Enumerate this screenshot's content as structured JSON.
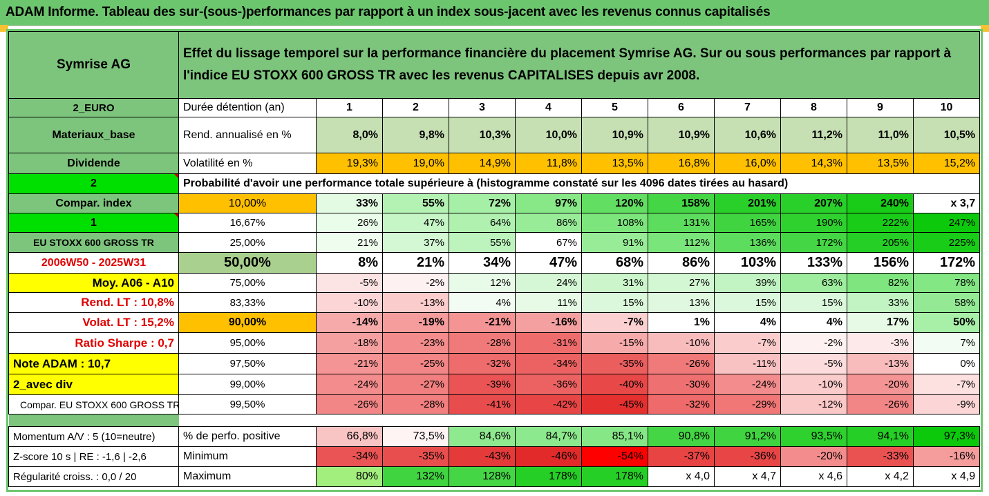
{
  "title": "ADAM Informe. Tableau des sur-(sous-)performances par rapport à un index sous-jacent avec les revenus connus capitalisés",
  "header": {
    "company": "Symrise AG",
    "description": "Effet du lissage temporel sur la performance financière du placement Symrise AG. Sur ou sous performances par rapport à l'indice EU STOXX 600 GROSS TR avec les revenus CAPITALISES depuis avr 2008."
  },
  "left": {
    "currency": "2_EURO",
    "sector": "Materiaux_base",
    "dividende": "Dividende",
    "two": "2",
    "compar_index": "Compar. index",
    "one": "1",
    "index_name": "EU STOXX 600 GROSS TR",
    "period": "2006W50 - 2025W31",
    "moy": "Moy. A06 - A10",
    "rend_lt": "Rend. LT :   10,8%",
    "volat_lt": "Volat. LT :   15,2%",
    "sharpe": "Ratio Sharpe :    0,7",
    "note": "Note ADAM : 10,7",
    "avec_div": "2_avec div",
    "compar_full": "Compar. EU STOXX 600 GROSS TR",
    "momentum": "Momentum A/V : 5 (10=neutre)",
    "zscore": "Z-score 10 s  |  RE : -1,6  |  -2,6",
    "regularite": "Régularité croiss. : 0,0 / 20"
  },
  "rowlabels": {
    "duree": "Durée détention (an)",
    "rend": "Rend. annualisé en %",
    "vol": "Volatilité en %",
    "proba": "Probabilité d'avoir une performance totale supérieure à (histogramme constaté sur les 4096 dates tirées au hasard)",
    "pos": "% de perfo. positive",
    "min": "Minimum",
    "max": "Maximum"
  },
  "years": [
    "1",
    "2",
    "3",
    "4",
    "5",
    "6",
    "7",
    "8",
    "9",
    "10"
  ],
  "rend": [
    "8,0%",
    "9,8%",
    "10,3%",
    "10,0%",
    "10,9%",
    "10,9%",
    "10,6%",
    "11,2%",
    "11,0%",
    "10,5%"
  ],
  "vol": [
    "19,3%",
    "19,0%",
    "14,9%",
    "11,8%",
    "13,5%",
    "16,8%",
    "16,0%",
    "14,3%",
    "13,5%",
    "15,2%"
  ],
  "prob_rows": [
    {
      "pct": "10,00%",
      "vals": [
        "33%",
        "55%",
        "72%",
        "97%",
        "120%",
        "158%",
        "201%",
        "207%",
        "240%",
        "x 3,7"
      ]
    },
    {
      "pct": "16,67%",
      "vals": [
        "26%",
        "47%",
        "64%",
        "86%",
        "108%",
        "131%",
        "165%",
        "190%",
        "222%",
        "247%"
      ]
    },
    {
      "pct": "25,00%",
      "vals": [
        "21%",
        "37%",
        "55%",
        "67%",
        "91%",
        "112%",
        "136%",
        "172%",
        "205%",
        "225%"
      ]
    },
    {
      "pct": "50,00%",
      "vals": [
        "8%",
        "21%",
        "34%",
        "47%",
        "68%",
        "86%",
        "103%",
        "133%",
        "156%",
        "172%"
      ]
    },
    {
      "pct": "75,00%",
      "vals": [
        "-5%",
        "-2%",
        "12%",
        "24%",
        "31%",
        "27%",
        "39%",
        "63%",
        "82%",
        "78%"
      ]
    },
    {
      "pct": "83,33%",
      "vals": [
        "-10%",
        "-13%",
        "4%",
        "11%",
        "15%",
        "13%",
        "15%",
        "15%",
        "33%",
        "58%"
      ]
    },
    {
      "pct": "90,00%",
      "vals": [
        "-14%",
        "-19%",
        "-21%",
        "-16%",
        "-7%",
        "1%",
        "4%",
        "4%",
        "17%",
        "50%"
      ]
    },
    {
      "pct": "95,00%",
      "vals": [
        "-18%",
        "-23%",
        "-28%",
        "-31%",
        "-15%",
        "-10%",
        "-7%",
        "-2%",
        "-3%",
        "7%"
      ]
    },
    {
      "pct": "97,50%",
      "vals": [
        "-21%",
        "-25%",
        "-32%",
        "-34%",
        "-35%",
        "-26%",
        "-11%",
        "-5%",
        "-13%",
        "0%"
      ]
    },
    {
      "pct": "99,00%",
      "vals": [
        "-24%",
        "-27%",
        "-39%",
        "-36%",
        "-40%",
        "-30%",
        "-24%",
        "-10%",
        "-20%",
        "-7%"
      ]
    },
    {
      "pct": "99,50%",
      "vals": [
        "-26%",
        "-28%",
        "-41%",
        "-42%",
        "-45%",
        "-32%",
        "-29%",
        "-12%",
        "-26%",
        "-9%"
      ]
    }
  ],
  "pos": [
    "66,8%",
    "73,5%",
    "84,6%",
    "84,7%",
    "85,1%",
    "90,8%",
    "91,2%",
    "93,5%",
    "94,1%",
    "97,3%"
  ],
  "min": [
    "-34%",
    "-35%",
    "-43%",
    "-46%",
    "-54%",
    "-37%",
    "-36%",
    "-20%",
    "-33%",
    "-16%"
  ],
  "max": [
    "80%",
    "132%",
    "128%",
    "178%",
    "178%",
    "x 4,0",
    "x 4,7",
    "x 4,6",
    "x 4,2",
    "x 4,9"
  ],
  "colors": {
    "rend": [
      "#c6e0b4",
      "#c6e0b4",
      "#c6e0b4",
      "#c6e0b4",
      "#c6e0b4",
      "#c6e0b4",
      "#c6e0b4",
      "#c6e0b4",
      "#c6e0b4",
      "#c6e0b4"
    ],
    "vol": [
      "#ffc000",
      "#ffc000",
      "#ffc000",
      "#ffc000",
      "#ffc000",
      "#ffc000",
      "#ffc000",
      "#ffc000",
      "#ffc000",
      "#ffc000"
    ],
    "prob": [
      [
        "#e3fbe3",
        "#b4f2b4",
        "#a6efa6",
        "#88e888",
        "#62de62",
        "#45d645",
        "#2ad02a",
        "#2ad02a",
        "#18cc18",
        "#ffffff"
      ],
      [
        "#eafcea",
        "#c6f5c6",
        "#b0f1b0",
        "#98ec98",
        "#7ce57c",
        "#5ddd5d",
        "#40d540",
        "#2ed12e",
        "#18cc18",
        "#0cc90c"
      ],
      [
        "#effdef",
        "#d4f8d4",
        "#bdf3bd",
        "#ace fac",
        "#98ec98",
        "#7ae57a",
        "#5ddd5d",
        "#45d645",
        "#26cf26",
        "#18cc18"
      ],
      [
        "#ffffff",
        "#ffffff",
        "#ffffff",
        "#ffffff",
        "#ffffff",
        "#ffffff",
        "#ffffff",
        "#ffffff",
        "#ffffff",
        "#ffffff"
      ],
      [
        "#fde4e4",
        "#fef1f1",
        "#e8fae8",
        "#d6f7d6",
        "#ccf5cc",
        "#d3f7d3",
        "#c2f3c2",
        "#9eed9e",
        "#7fe67f",
        "#83e783"
      ],
      [
        "#fcd6d6",
        "#fbcccc",
        "#f2fcf2",
        "#e6fae6",
        "#dcf8dc",
        "#e0f8e0",
        "#dcf8dc",
        "#dcf8dc",
        "#c2f3c2",
        "#94ea94"
      ],
      [
        "#f7aaaa",
        "#f59d9d",
        "#f49494",
        "#f5a0a0",
        "#fbd0d0",
        "#ffffff",
        "#ffffff",
        "#ffffff",
        "#e6fae6",
        "#a8f0a8"
      ],
      [
        "#f5a0a0",
        "#f38c8c",
        "#f07a7a",
        "#ee6c6c",
        "#f7aaaa",
        "#f9bcbc",
        "#fbcccc",
        "#fef1f1",
        "#fde9e9",
        "#f2fcf2"
      ],
      [
        "#f49494",
        "#f28686",
        "#ee6c6c",
        "#ec6262",
        "#eb5e5e",
        "#f07a7a",
        "#f9c2c2",
        "#fcdcdc",
        "#f9bcbc",
        "#ffffff"
      ],
      [
        "#f38c8c",
        "#f17f7f",
        "#ea5454",
        "#ec6262",
        "#e94848",
        "#ef7070",
        "#f38c8c",
        "#fbcccc",
        "#f49494",
        "#fde0e0"
      ],
      [
        "#f28686",
        "#f17f7f",
        "#e94c4c",
        "#e84646",
        "#e53030",
        "#ef6a6a",
        "#f17777",
        "#fbc8c8",
        "#f28686",
        "#fcd6d6"
      ]
    ],
    "pos": [
      "#f9c4c4",
      "#fff4f4",
      "#8fe98f",
      "#8de98d",
      "#86e786",
      "#45d645",
      "#40d540",
      "#2ed12e",
      "#26cf26",
      "#0cc90c"
    ],
    "min": [
      "#ea5454",
      "#e94e4e",
      "#e53a3a",
      "#e32a2a",
      "#ff0000",
      "#e84444",
      "#e84646",
      "#f38c8c",
      "#ea5252",
      "#f59d9d"
    ],
    "max": [
      "#a3ef7e",
      "#40d540",
      "#45d645",
      "#26cf26",
      "#26cf26",
      "#ffffff",
      "#ffffff",
      "#ffffff",
      "#ffffff",
      "#ffffff"
    ]
  }
}
